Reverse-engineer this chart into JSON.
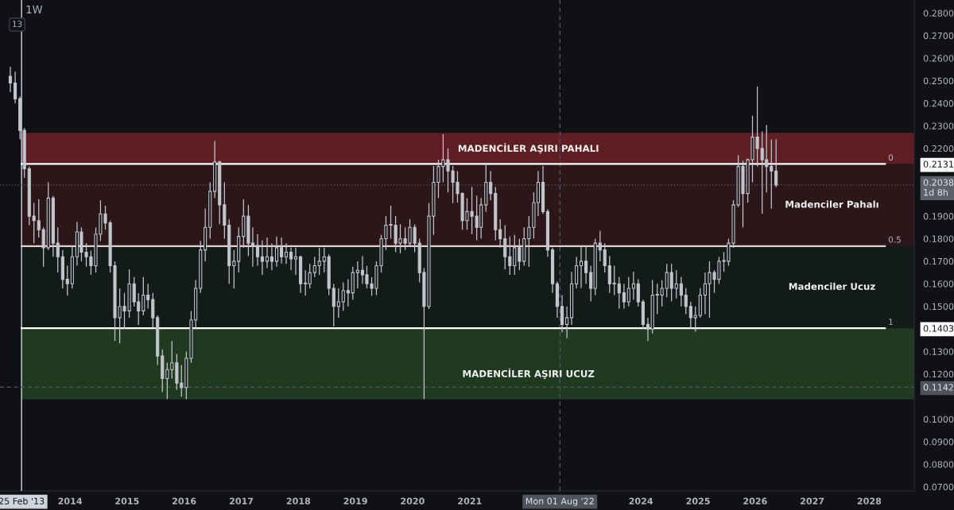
{
  "chart_data": {
    "type": "candlestick",
    "title": "1W",
    "annotations": [
      "13",
      {
        "text": "0",
        "x": "2028-05",
        "y": 0.2131
      },
      {
        "text": "0.5",
        "x": "2028-05",
        "y": 0.1767
      },
      {
        "text": "1",
        "x": "2028-05",
        "y": 0.1403
      }
    ],
    "color": "#c2c5cc",
    "x": [
      "2012-12-15",
      "2013-01-15",
      "2013-02-15",
      "2013-03-15",
      "2013-04-15",
      "2013-05-15",
      "2013-06-15",
      "2013-07-15",
      "2013-08-15",
      "2013-09-15",
      "2013-10-15",
      "2013-11-15",
      "2013-12-15",
      "2014-01-15",
      "2014-02-15",
      "2014-03-15",
      "2014-04-15",
      "2014-05-15",
      "2014-06-15",
      "2014-07-15",
      "2014-08-15",
      "2014-09-15",
      "2014-10-15",
      "2014-11-15",
      "2014-12-15",
      "2015-01-15",
      "2015-02-15",
      "2015-03-15",
      "2015-04-15",
      "2015-05-15",
      "2015-06-15",
      "2015-07-15",
      "2015-08-15",
      "2015-09-15",
      "2015-10-15",
      "2015-11-15",
      "2015-12-15",
      "2016-01-15",
      "2016-02-15",
      "2016-03-15",
      "2016-04-15",
      "2016-05-15",
      "2016-06-15",
      "2016-07-15",
      "2016-08-15",
      "2016-09-15",
      "2016-10-15",
      "2016-11-15",
      "2016-12-15",
      "2017-01-15",
      "2017-02-15",
      "2017-03-15",
      "2017-04-15",
      "2017-05-15",
      "2017-06-15",
      "2017-07-15",
      "2017-08-15",
      "2017-09-15",
      "2017-10-15",
      "2017-11-15",
      "2017-12-15",
      "2018-01-15",
      "2018-02-15",
      "2018-03-15",
      "2018-04-15",
      "2018-05-15",
      "2018-06-15",
      "2018-07-15",
      "2018-08-15",
      "2018-09-15",
      "2018-10-15",
      "2018-11-15",
      "2018-12-15",
      "2019-01-15",
      "2019-02-15",
      "2019-03-15",
      "2019-04-15",
      "2019-05-15",
      "2019-06-15",
      "2019-07-15",
      "2019-08-15",
      "2019-09-15",
      "2019-10-15",
      "2019-11-15",
      "2019-12-15",
      "2020-01-15",
      "2020-02-15",
      "2020-03-15",
      "2020-04-15",
      "2020-05-15",
      "2020-06-15",
      "2020-07-15",
      "2020-08-15",
      "2020-09-15",
      "2020-10-15",
      "2020-11-15",
      "2020-12-15",
      "2021-01-15",
      "2021-02-15",
      "2021-03-15",
      "2021-04-15",
      "2021-05-15",
      "2021-06-15",
      "2021-07-15",
      "2021-08-15",
      "2021-09-15",
      "2021-10-15",
      "2021-11-15",
      "2021-12-15",
      "2022-01-15",
      "2022-02-15",
      "2022-03-15",
      "2022-04-15",
      "2022-05-15",
      "2022-06-15",
      "2022-07-15",
      "2022-08-15",
      "2022-09-15",
      "2022-10-15",
      "2022-11-15",
      "2022-12-15",
      "2023-01-15",
      "2023-02-15",
      "2023-03-15",
      "2023-04-15",
      "2023-05-15",
      "2023-06-15",
      "2023-07-15",
      "2023-08-15",
      "2023-09-15",
      "2023-10-15",
      "2023-11-15",
      "2023-12-15",
      "2024-01-15",
      "2024-02-15",
      "2024-03-15",
      "2024-04-15",
      "2024-05-15",
      "2024-06-15",
      "2024-07-15",
      "2024-08-15",
      "2024-09-15",
      "2024-10-15",
      "2024-11-15",
      "2024-12-15",
      "2025-01-15",
      "2025-02-15",
      "2025-03-15",
      "2025-04-15",
      "2025-05-15",
      "2025-06-15",
      "2025-07-15",
      "2025-08-15",
      "2025-09-15",
      "2025-10-15",
      "2025-11-15",
      "2025-12-15",
      "2026-01-15",
      "2026-02-15",
      "2026-03-15",
      "2026-04-15",
      "2026-05-15"
    ],
    "ohlc": [
      [
        0.252,
        0.2562,
        0.245,
        0.249
      ],
      [
        0.249,
        0.254,
        0.24,
        0.242
      ],
      [
        0.242,
        0.243,
        0.224,
        0.228
      ],
      [
        0.228,
        0.229,
        0.207,
        0.211
      ],
      [
        0.211,
        0.212,
        0.186,
        0.19
      ],
      [
        0.19,
        0.1958,
        0.178,
        0.188
      ],
      [
        0.188,
        0.1975,
        0.1805,
        0.184
      ],
      [
        0.184,
        0.185,
        0.1676,
        0.176
      ],
      [
        0.176,
        0.205,
        0.175,
        0.198
      ],
      [
        0.198,
        0.199,
        0.172,
        0.178
      ],
      [
        0.178,
        0.185,
        0.165,
        0.172
      ],
      [
        0.172,
        0.175,
        0.158,
        0.162
      ],
      [
        0.162,
        0.168,
        0.1547,
        0.16
      ],
      [
        0.16,
        0.177,
        0.158,
        0.172
      ],
      [
        0.172,
        0.1875,
        0.168,
        0.183
      ],
      [
        0.183,
        0.185,
        0.17,
        0.174
      ],
      [
        0.174,
        0.178,
        0.1676,
        0.172
      ],
      [
        0.172,
        0.1747,
        0.164,
        0.168
      ],
      [
        0.168,
        0.185,
        0.165,
        0.182
      ],
      [
        0.182,
        0.197,
        0.179,
        0.191
      ],
      [
        0.191,
        0.1946,
        0.184,
        0.187
      ],
      [
        0.187,
        0.188,
        0.165,
        0.168
      ],
      [
        0.168,
        0.17,
        0.1347,
        0.145
      ],
      [
        0.145,
        0.158,
        0.1336,
        0.15
      ],
      [
        0.15,
        0.156,
        0.14,
        0.148
      ],
      [
        0.148,
        0.1664,
        0.145,
        0.16
      ],
      [
        0.16,
        0.163,
        0.15,
        0.152
      ],
      [
        0.152,
        0.1559,
        0.1418,
        0.148
      ],
      [
        0.148,
        0.163,
        0.146,
        0.155
      ],
      [
        0.155,
        0.16,
        0.149,
        0.153
      ],
      [
        0.153,
        0.156,
        0.1406,
        0.145
      ],
      [
        0.145,
        0.146,
        0.124,
        0.128
      ],
      [
        0.128,
        0.131,
        0.112,
        0.118
      ],
      [
        0.118,
        0.125,
        0.1089,
        0.122
      ],
      [
        0.122,
        0.1347,
        0.118,
        0.125
      ],
      [
        0.125,
        0.1289,
        0.113,
        0.116
      ],
      [
        0.116,
        0.124,
        0.11,
        0.114
      ],
      [
        0.114,
        0.13,
        0.1089,
        0.127
      ],
      [
        0.127,
        0.148,
        0.125,
        0.144
      ],
      [
        0.144,
        0.1617,
        0.14,
        0.158
      ],
      [
        0.158,
        0.179,
        0.156,
        0.175
      ],
      [
        0.175,
        0.1934,
        0.17,
        0.185
      ],
      [
        0.185,
        0.205,
        0.18,
        0.201
      ],
      [
        0.201,
        0.2233,
        0.198,
        0.214
      ],
      [
        0.214,
        0.2145,
        0.1864,
        0.195
      ],
      [
        0.195,
        0.205,
        0.18,
        0.186
      ],
      [
        0.186,
        0.1887,
        0.16,
        0.168
      ],
      [
        0.168,
        0.175,
        0.158,
        0.17
      ],
      [
        0.17,
        0.185,
        0.165,
        0.181
      ],
      [
        0.181,
        0.1975,
        0.176,
        0.19
      ],
      [
        0.19,
        0.195,
        0.1723,
        0.178
      ],
      [
        0.178,
        0.185,
        0.1676,
        0.177
      ],
      [
        0.177,
        0.182,
        0.168,
        0.172
      ],
      [
        0.172,
        0.1793,
        0.164,
        0.17
      ],
      [
        0.17,
        0.1805,
        0.167,
        0.172
      ],
      [
        0.172,
        0.178,
        0.166,
        0.17
      ],
      [
        0.17,
        0.181,
        0.1676,
        0.176
      ],
      [
        0.176,
        0.1805,
        0.169,
        0.172
      ],
      [
        0.172,
        0.178,
        0.1688,
        0.174
      ],
      [
        0.174,
        0.176,
        0.166,
        0.171
      ],
      [
        0.171,
        0.176,
        0.164,
        0.172
      ],
      [
        0.172,
        0.1725,
        0.156,
        0.16
      ],
      [
        0.16,
        0.166,
        0.1547,
        0.16
      ],
      [
        0.16,
        0.1688,
        0.158,
        0.165
      ],
      [
        0.165,
        0.172,
        0.163,
        0.168
      ],
      [
        0.168,
        0.176,
        0.164,
        0.17
      ],
      [
        0.17,
        0.176,
        0.165,
        0.172
      ],
      [
        0.172,
        0.173,
        0.155,
        0.158
      ],
      [
        0.158,
        0.16,
        0.1412,
        0.15
      ],
      [
        0.15,
        0.158,
        0.145,
        0.152
      ],
      [
        0.152,
        0.1606,
        0.148,
        0.157
      ],
      [
        0.157,
        0.162,
        0.15,
        0.156
      ],
      [
        0.156,
        0.1676,
        0.153,
        0.165
      ],
      [
        0.165,
        0.17,
        0.158,
        0.166
      ],
      [
        0.166,
        0.1723,
        0.16,
        0.164
      ],
      [
        0.164,
        0.168,
        0.158,
        0.16
      ],
      [
        0.16,
        0.163,
        0.1547,
        0.158
      ],
      [
        0.158,
        0.17,
        0.155,
        0.168
      ],
      [
        0.168,
        0.1817,
        0.165,
        0.18
      ],
      [
        0.18,
        0.19,
        0.175,
        0.186
      ],
      [
        0.186,
        0.1946,
        0.18,
        0.186
      ],
      [
        0.186,
        0.19,
        0.174,
        0.178
      ],
      [
        0.178,
        0.1864,
        0.1735,
        0.18
      ],
      [
        0.18,
        0.185,
        0.175,
        0.178
      ],
      [
        0.178,
        0.1887,
        0.177,
        0.185
      ],
      [
        0.185,
        0.1864,
        0.174,
        0.178
      ],
      [
        0.178,
        0.18,
        0.1606,
        0.165
      ],
      [
        0.165,
        0.167,
        0.1089,
        0.15
      ],
      [
        0.15,
        0.1958,
        0.1488,
        0.19
      ],
      [
        0.19,
        0.2122,
        0.1817,
        0.205
      ],
      [
        0.205,
        0.215,
        0.198,
        0.212
      ],
      [
        0.212,
        0.2263,
        0.205,
        0.215
      ],
      [
        0.215,
        0.22,
        0.2005,
        0.21
      ],
      [
        0.21,
        0.2122,
        0.1958,
        0.205
      ],
      [
        0.205,
        0.21,
        0.196,
        0.2
      ],
      [
        0.2,
        0.2005,
        0.184,
        0.188
      ],
      [
        0.188,
        0.198,
        0.184,
        0.192
      ],
      [
        0.192,
        0.203,
        0.182,
        0.19
      ],
      [
        0.19,
        0.199,
        0.1793,
        0.185
      ],
      [
        0.185,
        0.198,
        0.18,
        0.195
      ],
      [
        0.195,
        0.2128,
        0.192,
        0.205
      ],
      [
        0.205,
        0.21,
        0.197,
        0.2
      ],
      [
        0.2,
        0.203,
        0.1793,
        0.184
      ],
      [
        0.184,
        0.1886,
        0.176,
        0.18
      ],
      [
        0.18,
        0.186,
        0.1664,
        0.172
      ],
      [
        0.172,
        0.181,
        0.164,
        0.168
      ],
      [
        0.168,
        0.1817,
        0.164,
        0.176
      ],
      [
        0.176,
        0.18,
        0.166,
        0.17
      ],
      [
        0.17,
        0.185,
        0.168,
        0.18
      ],
      [
        0.18,
        0.19,
        0.1675,
        0.185
      ],
      [
        0.185,
        0.2005,
        0.18,
        0.196
      ],
      [
        0.196,
        0.21,
        0.19,
        0.205
      ],
      [
        0.205,
        0.2122,
        0.191,
        0.192
      ],
      [
        0.192,
        0.193,
        0.172,
        0.175
      ],
      [
        0.175,
        0.176,
        0.156,
        0.16
      ],
      [
        0.16,
        0.161,
        0.145,
        0.15
      ],
      [
        0.15,
        0.155,
        0.1385,
        0.142
      ],
      [
        0.142,
        0.15,
        0.1359,
        0.145
      ],
      [
        0.145,
        0.1653,
        0.1418,
        0.16
      ],
      [
        0.16,
        0.172,
        0.158,
        0.168
      ],
      [
        0.168,
        0.177,
        0.1582,
        0.17
      ],
      [
        0.17,
        0.177,
        0.16,
        0.165
      ],
      [
        0.165,
        0.168,
        0.1523,
        0.158
      ],
      [
        0.158,
        0.18,
        0.155,
        0.178
      ],
      [
        0.178,
        0.1835,
        0.17,
        0.175
      ],
      [
        0.175,
        0.178,
        0.165,
        0.168
      ],
      [
        0.168,
        0.1723,
        0.156,
        0.16
      ],
      [
        0.16,
        0.168,
        0.155,
        0.16
      ],
      [
        0.16,
        0.163,
        0.149,
        0.156
      ],
      [
        0.156,
        0.16,
        0.149,
        0.152
      ],
      [
        0.152,
        0.163,
        0.15,
        0.158
      ],
      [
        0.158,
        0.1653,
        0.153,
        0.16
      ],
      [
        0.16,
        0.162,
        0.15,
        0.152
      ],
      [
        0.152,
        0.153,
        0.14,
        0.142
      ],
      [
        0.142,
        0.145,
        0.1347,
        0.14
      ],
      [
        0.14,
        0.1617,
        0.138,
        0.155
      ],
      [
        0.155,
        0.16,
        0.1465,
        0.155
      ],
      [
        0.155,
        0.1617,
        0.15,
        0.158
      ],
      [
        0.158,
        0.1688,
        0.154,
        0.165
      ],
      [
        0.165,
        0.1688,
        0.1523,
        0.158
      ],
      [
        0.158,
        0.166,
        0.1535,
        0.16
      ],
      [
        0.16,
        0.163,
        0.15,
        0.155
      ],
      [
        0.155,
        0.1582,
        0.1465,
        0.15
      ],
      [
        0.15,
        0.152,
        0.14,
        0.145
      ],
      [
        0.145,
        0.15,
        0.1388,
        0.146
      ],
      [
        0.146,
        0.1582,
        0.145,
        0.155
      ],
      [
        0.155,
        0.165,
        0.1465,
        0.16
      ],
      [
        0.16,
        0.17,
        0.145,
        0.165
      ],
      [
        0.165,
        0.166,
        0.156,
        0.162
      ],
      [
        0.162,
        0.172,
        0.16,
        0.17
      ],
      [
        0.17,
        0.174,
        0.1653,
        0.17
      ],
      [
        0.17,
        0.18,
        0.168,
        0.178
      ],
      [
        0.178,
        0.197,
        0.176,
        0.195
      ],
      [
        0.195,
        0.217,
        0.194,
        0.212
      ],
      [
        0.212,
        0.2145,
        0.185,
        0.2
      ],
      [
        0.2,
        0.2155,
        0.196,
        0.215
      ],
      [
        0.215,
        0.2345,
        0.205,
        0.225
      ],
      [
        0.225,
        0.2474,
        0.212,
        0.22
      ],
      [
        0.22,
        0.2275,
        0.191,
        0.215
      ],
      [
        0.215,
        0.2304,
        0.2005,
        0.212
      ],
      [
        0.212,
        0.224,
        0.1934,
        0.21
      ],
      [
        0.21,
        0.224,
        0.2028,
        0.2038
      ]
    ],
    "xlim": [
      "2012-10-10",
      "2028-10-15"
    ],
    "ylim": [
      0.0682,
      0.2858
    ],
    "xticks": [
      {
        "value": "2013-02-25",
        "label": "25 Feb '13"
      },
      "2014",
      "2015",
      "2016",
      "2017",
      "2018",
      "2019",
      "2020",
      "2021",
      {
        "value": "2022-08-01",
        "label": "Mon 01 Aug '22"
      },
      "2024",
      "2025",
      "2026",
      "2027",
      "2028"
    ],
    "yticks": [
      {
        "value": 0.07,
        "label": "0.0700"
      },
      {
        "value": 0.08,
        "label": "0.0800"
      },
      {
        "value": 0.09,
        "label": "0.0900"
      },
      {
        "value": 0.1,
        "label": "0.1000"
      },
      {
        "value": 0.1142,
        "label": "0.1142"
      },
      {
        "value": 0.12,
        "label": "0.1200"
      },
      {
        "value": 0.13,
        "label": "0.1300"
      },
      {
        "value": 0.1403,
        "label": "0.1403"
      },
      {
        "value": 0.15,
        "label": "0.1500"
      },
      {
        "value": 0.16,
        "label": "0.1600"
      },
      {
        "value": 0.17,
        "label": "0.1700"
      },
      {
        "value": 0.18,
        "label": "0.1800"
      },
      {
        "value": 0.19,
        "label": "0.1900"
      },
      {
        "value": 0.2038,
        "label": "0.2038\n1d 8h"
      },
      {
        "value": 0.2131,
        "label": "0.2131"
      },
      {
        "value": 0.22,
        "label": "0.2200"
      },
      {
        "value": 0.23,
        "label": "0.2300"
      },
      {
        "value": 0.24,
        "label": "0.2400"
      },
      {
        "value": 0.25,
        "label": "0.2500"
      },
      {
        "value": 0.26,
        "label": "0.2600"
      },
      {
        "value": 0.27,
        "label": "0.2700"
      },
      {
        "value": 0.28,
        "label": "0.2800"
      }
    ],
    "ref_lines": [
      {
        "axis": "x",
        "value": "2013-02-25",
        "color": "#d1d4dc"
      },
      {
        "axis": "x",
        "value": "2022-08-01",
        "color": "#50535e",
        "line_style": "dashed"
      },
      {
        "axis": "y",
        "value": 0.1142,
        "color": "#50535e",
        "line_style": "dashed"
      },
      {
        "axis": "y",
        "value": 0.2038,
        "color": "#5d606b",
        "line_style": "dotted"
      },
      {
        "axis": "y",
        "value": 0.2131,
        "color": "#ffffff"
      },
      {
        "axis": "y",
        "value": 0.1767,
        "color": "#e8cdd2"
      },
      {
        "axis": "y",
        "value": 0.1403,
        "color": "#ffffff"
      }
    ],
    "bands": [
      {
        "axis": "y",
        "from": 0.2131,
        "to": 0.2269,
        "label": "MADENCİLER AŞIRI PAHALI",
        "color": "#5e1e23"
      },
      {
        "axis": "y",
        "from": 0.1767,
        "to": 0.2131,
        "label": "Madenciler Pahalı",
        "color": "#2b161a"
      },
      {
        "axis": "y",
        "from": 0.1403,
        "to": 0.1767,
        "label": "Madenciler Ucuz",
        "color": "#131b19"
      },
      {
        "axis": "y",
        "from": 0.1088,
        "to": 0.1403,
        "label": "MADENCİLER AŞIRI UCUZ",
        "color": "#1f3a21"
      }
    ]
  }
}
